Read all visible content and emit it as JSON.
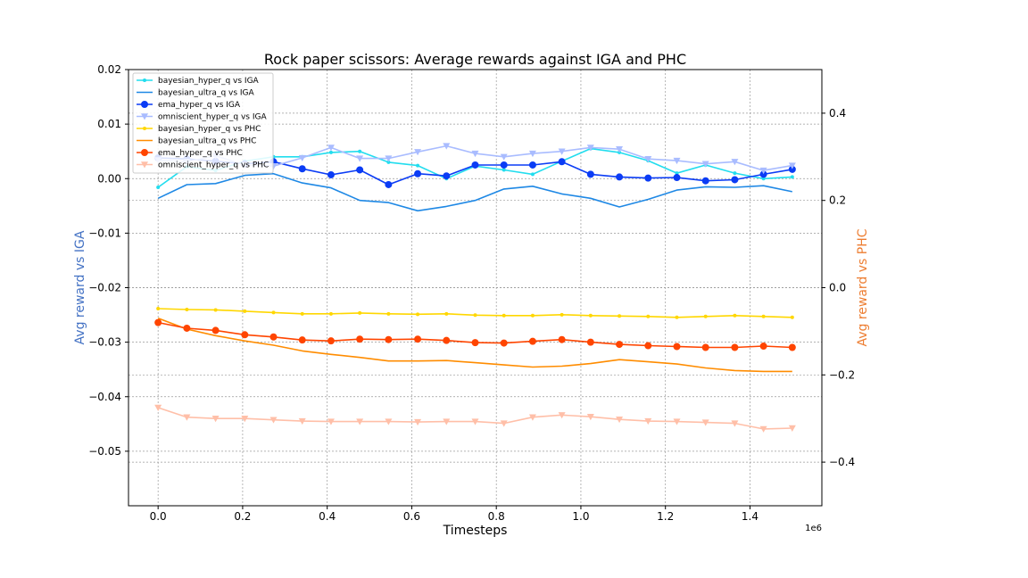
{
  "chart_data": {
    "type": "line",
    "title": "Rock paper scissors: Average rewards against IGA and PHC",
    "xlabel": "Timesteps",
    "ylabel_left": "Avg reward vs IGA",
    "ylabel_right": "Avg reward vs PHC",
    "x_offset_label": "1e6",
    "xlim": [
      -0.07,
      1.57
    ],
    "ylim_left": [
      -0.06,
      0.02
    ],
    "ylim_right": [
      -0.5,
      0.5
    ],
    "x_ticks": [
      0.0,
      0.2,
      0.4,
      0.6,
      0.8,
      1.0,
      1.2,
      1.4
    ],
    "x_tick_labels": [
      "0.0",
      "0.2",
      "0.4",
      "0.6",
      "0.8",
      "1.0",
      "1.2",
      "1.4"
    ],
    "y_left_ticks": [
      0.02,
      0.01,
      0.0,
      -0.01,
      -0.02,
      -0.03,
      -0.04,
      -0.05
    ],
    "y_left_tick_labels": [
      "0.02",
      "0.01",
      "0.00",
      "−0.01",
      "−0.02",
      "−0.03",
      "−0.04",
      "−0.05"
    ],
    "y_right_ticks": [
      0.4,
      0.2,
      0.0,
      -0.2,
      -0.4
    ],
    "y_right_tick_labels": [
      "0.4",
      "0.2",
      "0.0",
      "−0.2",
      "−0.4"
    ],
    "grid": true,
    "legend_position": "top-left",
    "colors": {
      "left_axis_label": "#4472c4",
      "right_axis_label": "#ed7d31"
    },
    "x": [
      0.0,
      0.068,
      0.136,
      0.205,
      0.273,
      0.341,
      0.409,
      0.477,
      0.545,
      0.614,
      0.682,
      0.75,
      0.818,
      0.886,
      0.955,
      1.023,
      1.091,
      1.159,
      1.227,
      1.295,
      1.364,
      1.432,
      1.5
    ],
    "series": [
      {
        "name": "bayesian_hyper_q vs IGA",
        "axis": "left",
        "color": "#22ddee",
        "marker": "dot",
        "values": [
          -0.0016,
          0.0022,
          0.0015,
          0.0032,
          0.004,
          0.004,
          0.0048,
          0.005,
          0.003,
          0.0024,
          0.0,
          0.0023,
          0.0016,
          0.0008,
          0.0032,
          0.0055,
          0.0048,
          0.0033,
          0.001,
          0.0025,
          0.001,
          0.0,
          0.0003
        ]
      },
      {
        "name": "bayesian_ultra_q vs IGA",
        "axis": "left",
        "color": "#1e88e5",
        "marker": "none",
        "values": [
          -0.0036,
          -0.0011,
          -0.0009,
          0.0006,
          0.0009,
          -0.0008,
          -0.0017,
          -0.004,
          -0.0044,
          -0.0059,
          -0.0051,
          -0.004,
          -0.0019,
          -0.0014,
          -0.0028,
          -0.0036,
          -0.0052,
          -0.0038,
          -0.0021,
          -0.0015,
          -0.0016,
          -0.0013,
          -0.0024
        ]
      },
      {
        "name": "ema_hyper_q vs IGA",
        "axis": "left",
        "color": "#0b3cf5",
        "marker": "circle",
        "values": [
          0.0038,
          0.0036,
          0.0032,
          0.0027,
          0.0031,
          0.0018,
          0.0007,
          0.0016,
          -0.0011,
          0.0009,
          0.0005,
          0.0025,
          0.0025,
          0.0025,
          0.0031,
          0.0008,
          0.0003,
          0.0001,
          0.0002,
          -0.0004,
          -0.0002,
          0.0008,
          0.0017
        ]
      },
      {
        "name": "omniscient_hyper_q vs IGA",
        "axis": "left",
        "color": "#a9bcff",
        "marker": "triangle-down",
        "values": [
          0.0034,
          0.0031,
          0.0042,
          0.0025,
          0.0023,
          0.0038,
          0.0057,
          0.0037,
          0.0037,
          0.0049,
          0.006,
          0.0046,
          0.004,
          0.0046,
          0.005,
          0.0057,
          0.0054,
          0.0036,
          0.0033,
          0.0027,
          0.0031,
          0.0015,
          0.0024
        ]
      },
      {
        "name": "bayesian_hyper_q vs PHC",
        "axis": "right",
        "color": "#ffd700",
        "marker": "dot",
        "values": [
          -0.048,
          -0.05,
          -0.051,
          -0.054,
          -0.057,
          -0.06,
          -0.06,
          -0.058,
          -0.06,
          -0.061,
          -0.06,
          -0.063,
          -0.064,
          -0.064,
          -0.062,
          -0.064,
          -0.065,
          -0.066,
          -0.068,
          -0.066,
          -0.064,
          -0.066,
          -0.068
        ]
      },
      {
        "name": "bayesian_ultra_q vs PHC",
        "axis": "right",
        "color": "#ff8c00",
        "marker": "none",
        "values": [
          -0.07,
          -0.095,
          -0.11,
          -0.122,
          -0.132,
          -0.145,
          -0.153,
          -0.16,
          -0.168,
          -0.168,
          -0.167,
          -0.172,
          -0.177,
          -0.182,
          -0.18,
          -0.174,
          -0.165,
          -0.17,
          -0.175,
          -0.184,
          -0.19,
          -0.192,
          -0.192
        ]
      },
      {
        "name": "ema_hyper_q vs PHC",
        "axis": "right",
        "color": "#ff4500",
        "marker": "circle",
        "values": [
          -0.08,
          -0.093,
          -0.098,
          -0.108,
          -0.113,
          -0.12,
          -0.122,
          -0.118,
          -0.119,
          -0.118,
          -0.121,
          -0.126,
          -0.127,
          -0.123,
          -0.119,
          -0.125,
          -0.13,
          -0.133,
          -0.135,
          -0.137,
          -0.137,
          -0.134,
          -0.137
        ]
      },
      {
        "name": "omniscient_hyper_q vs PHC",
        "axis": "right",
        "color": "#ffbfa8",
        "marker": "triangle-down",
        "values": [
          -0.275,
          -0.297,
          -0.3,
          -0.3,
          -0.303,
          -0.306,
          -0.307,
          -0.307,
          -0.307,
          -0.308,
          -0.307,
          -0.307,
          -0.311,
          -0.297,
          -0.292,
          -0.296,
          -0.302,
          -0.306,
          -0.307,
          -0.309,
          -0.311,
          -0.324,
          -0.322
        ]
      }
    ]
  }
}
